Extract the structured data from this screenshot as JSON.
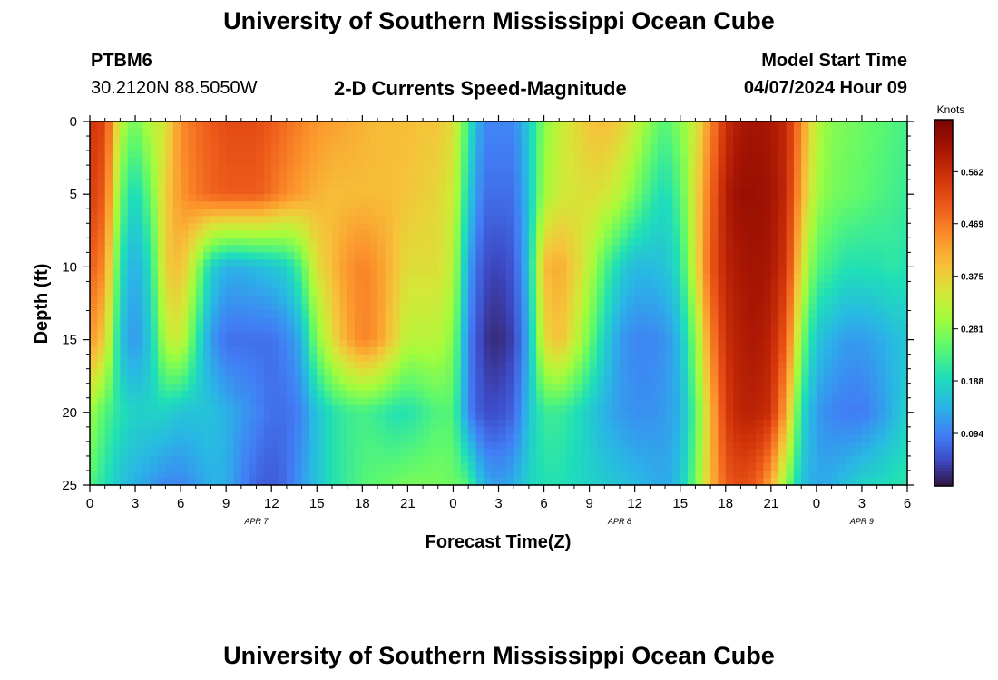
{
  "header": {
    "title": "University of Southern Mississippi Ocean Cube",
    "station_id": "PTBM6",
    "coordinates": "30.2120N  88.5050W",
    "subtitle": "2-D Currents Speed-Magnitude",
    "model_start_label": "Model Start Time",
    "model_start_value": "04/07/2024 Hour 09"
  },
  "footer": {
    "title": "University of Southern Mississippi Ocean Cube"
  },
  "chart_data": {
    "type": "heatmap",
    "title": "2-D Currents Speed-Magnitude",
    "xlabel": "Forecast Time(Z)",
    "ylabel": "Depth (ft)",
    "x_range": [
      0,
      54
    ],
    "x_tick_labels": [
      "0",
      "3",
      "6",
      "9",
      "12",
      "15",
      "18",
      "21",
      "0",
      "3",
      "6",
      "9",
      "12",
      "15",
      "18",
      "21",
      "0",
      "3",
      "6"
    ],
    "date_labels": [
      {
        "text": "APR 7",
        "hour": 11
      },
      {
        "text": "APR 8",
        "hour": 35
      },
      {
        "text": "APR 9",
        "hour": 51
      }
    ],
    "y_range": [
      0,
      25
    ],
    "y_ticks": [
      0,
      5,
      10,
      15,
      20,
      25
    ],
    "colorbar": {
      "label": "Knots",
      "range": [
        0.0,
        0.655
      ],
      "ticks": [
        0.094,
        0.188,
        0.281,
        0.375,
        0.469,
        0.562
      ],
      "tick_labels": [
        "0.094",
        "0.188",
        "0.281",
        "0.375",
        "0.469",
        "0.562"
      ]
    },
    "hours": [
      0,
      1,
      2,
      3,
      4,
      5,
      6,
      7,
      8,
      9,
      10,
      11,
      12,
      13,
      14,
      15,
      16,
      17,
      18,
      19,
      20,
      21,
      22,
      23,
      24,
      25,
      26,
      27,
      28,
      29,
      30,
      31,
      32,
      33,
      34,
      35,
      36,
      37,
      38,
      39,
      40,
      41,
      42,
      43,
      44,
      45,
      46,
      47,
      48,
      49,
      50,
      51,
      52,
      53,
      54
    ],
    "depths": [
      0,
      5,
      10,
      15,
      20,
      25
    ],
    "speed_knots": [
      [
        0.55,
        0.53,
        0.32,
        0.26,
        0.32,
        0.35,
        0.45,
        0.48,
        0.5,
        0.52,
        0.52,
        0.52,
        0.5,
        0.48,
        0.46,
        0.44,
        0.43,
        0.42,
        0.41,
        0.4,
        0.4,
        0.4,
        0.39,
        0.39,
        0.36,
        0.22,
        0.1,
        0.1,
        0.1,
        0.17,
        0.28,
        0.33,
        0.36,
        0.39,
        0.4,
        0.38,
        0.34,
        0.28,
        0.24,
        0.28,
        0.34,
        0.45,
        0.56,
        0.6,
        0.61,
        0.6,
        0.57,
        0.45,
        0.32,
        0.28,
        0.27,
        0.26,
        0.25,
        0.24,
        0.23
      ],
      [
        0.54,
        0.5,
        0.26,
        0.18,
        0.26,
        0.38,
        0.44,
        0.47,
        0.49,
        0.5,
        0.5,
        0.5,
        0.48,
        0.45,
        0.43,
        0.41,
        0.4,
        0.4,
        0.4,
        0.4,
        0.4,
        0.39,
        0.38,
        0.37,
        0.34,
        0.18,
        0.08,
        0.08,
        0.08,
        0.16,
        0.3,
        0.34,
        0.35,
        0.36,
        0.35,
        0.32,
        0.27,
        0.22,
        0.19,
        0.24,
        0.36,
        0.48,
        0.59,
        0.62,
        0.62,
        0.61,
        0.57,
        0.42,
        0.3,
        0.27,
        0.26,
        0.25,
        0.24,
        0.23,
        0.22
      ],
      [
        0.5,
        0.45,
        0.2,
        0.13,
        0.2,
        0.38,
        0.4,
        0.3,
        0.18,
        0.14,
        0.14,
        0.15,
        0.16,
        0.18,
        0.24,
        0.36,
        0.4,
        0.44,
        0.46,
        0.44,
        0.4,
        0.36,
        0.36,
        0.36,
        0.32,
        0.13,
        0.05,
        0.04,
        0.06,
        0.16,
        0.4,
        0.42,
        0.38,
        0.32,
        0.24,
        0.18,
        0.15,
        0.15,
        0.16,
        0.2,
        0.35,
        0.5,
        0.58,
        0.6,
        0.61,
        0.6,
        0.55,
        0.36,
        0.24,
        0.22,
        0.2,
        0.2,
        0.2,
        0.21,
        0.2
      ],
      [
        0.44,
        0.38,
        0.16,
        0.11,
        0.17,
        0.32,
        0.34,
        0.22,
        0.12,
        0.08,
        0.08,
        0.08,
        0.08,
        0.1,
        0.14,
        0.28,
        0.36,
        0.42,
        0.46,
        0.44,
        0.38,
        0.32,
        0.32,
        0.32,
        0.28,
        0.1,
        0.03,
        0.02,
        0.04,
        0.14,
        0.36,
        0.4,
        0.34,
        0.26,
        0.18,
        0.12,
        0.1,
        0.1,
        0.11,
        0.15,
        0.28,
        0.45,
        0.56,
        0.59,
        0.6,
        0.58,
        0.5,
        0.28,
        0.16,
        0.14,
        0.12,
        0.12,
        0.13,
        0.15,
        0.16
      ],
      [
        0.3,
        0.24,
        0.2,
        0.18,
        0.18,
        0.18,
        0.16,
        0.16,
        0.16,
        0.14,
        0.12,
        0.1,
        0.08,
        0.08,
        0.1,
        0.16,
        0.2,
        0.22,
        0.23,
        0.22,
        0.2,
        0.2,
        0.22,
        0.24,
        0.24,
        0.1,
        0.05,
        0.05,
        0.07,
        0.16,
        0.22,
        0.22,
        0.2,
        0.17,
        0.14,
        0.12,
        0.11,
        0.11,
        0.12,
        0.14,
        0.24,
        0.4,
        0.54,
        0.58,
        0.58,
        0.56,
        0.42,
        0.2,
        0.12,
        0.1,
        0.09,
        0.09,
        0.11,
        0.14,
        0.18
      ],
      [
        0.24,
        0.2,
        0.16,
        0.14,
        0.12,
        0.1,
        0.1,
        0.12,
        0.14,
        0.14,
        0.1,
        0.07,
        0.06,
        0.08,
        0.12,
        0.16,
        0.2,
        0.22,
        0.24,
        0.25,
        0.26,
        0.27,
        0.27,
        0.27,
        0.26,
        0.24,
        0.14,
        0.12,
        0.14,
        0.18,
        0.2,
        0.2,
        0.19,
        0.18,
        0.17,
        0.16,
        0.15,
        0.14,
        0.13,
        0.16,
        0.26,
        0.4,
        0.5,
        0.52,
        0.5,
        0.42,
        0.28,
        0.16,
        0.13,
        0.14,
        0.16,
        0.18,
        0.19,
        0.2,
        0.21
      ]
    ]
  }
}
